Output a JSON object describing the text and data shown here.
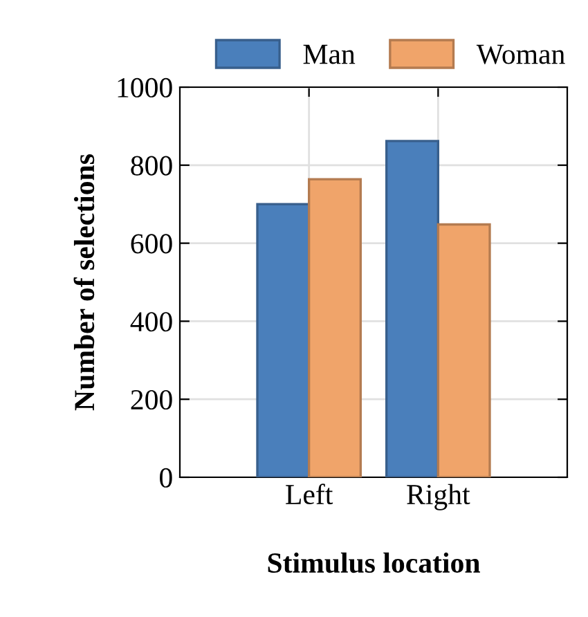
{
  "chart_data": {
    "type": "bar",
    "xlabel": "Stimulus location",
    "ylabel": "Number of selections",
    "categories": [
      "Left",
      "Right"
    ],
    "series": [
      {
        "name": "Man",
        "color": "#4a7fbb",
        "values": [
          700,
          862
        ]
      },
      {
        "name": "Woman",
        "color": "#f0a46a",
        "values": [
          764,
          648
        ]
      }
    ],
    "ylim": [
      0,
      1000
    ],
    "yticks": [
      0,
      200,
      400,
      600,
      800,
      1000
    ],
    "grid": true,
    "legend": "top right"
  }
}
